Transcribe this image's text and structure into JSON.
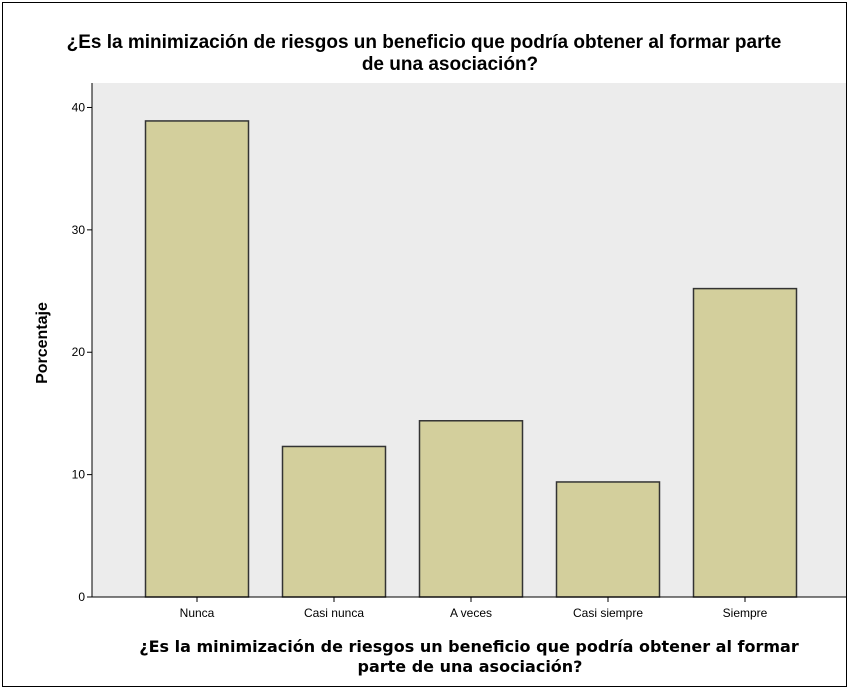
{
  "chart_data": {
    "type": "bar",
    "title": {
      "line1": "¿Es la minimización de riesgos un beneficio que podría obtener al formar parte",
      "line2": "de una asociación?"
    },
    "xlabel": {
      "line1": "¿Es la minimización de riesgos un beneficio que podría obtener al formar",
      "line2": "parte de una asociación?"
    },
    "ylabel": "Porcentaje",
    "categories": [
      "Nunca",
      "Casi nunca",
      "A veces",
      "Casi siempre",
      "Siempre"
    ],
    "values": [
      38.9,
      12.3,
      14.4,
      9.4,
      25.2
    ],
    "ylim": [
      0,
      42
    ],
    "yticks": [
      "0",
      "10",
      "20",
      "30",
      "40"
    ],
    "grid": false,
    "colors": {
      "bar_fill": "#d3cf9c",
      "bar_stroke": "#333333",
      "plot_background": "#ececec"
    }
  }
}
